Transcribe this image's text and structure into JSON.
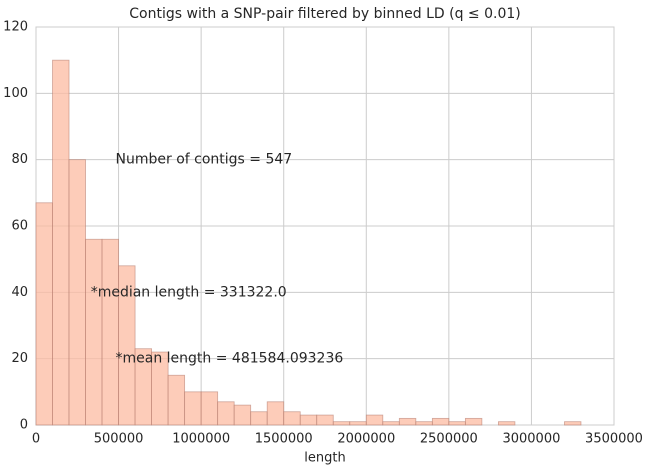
{
  "chart_data": {
    "type": "histogram",
    "title": "Contigs with a SNP-pair filtered by binned LD (q ≤ 0.01)",
    "x_label": "length",
    "bins": [
      0,
      100000,
      200000,
      300000,
      400000,
      500000,
      600000,
      700000,
      800000,
      900000,
      1000000,
      1100000,
      1200000,
      1300000,
      1400000,
      1500000,
      1600000,
      1700000,
      1800000,
      1900000,
      2000000,
      2100000,
      2200000,
      2300000,
      2400000,
      2500000,
      2600000,
      2700000,
      2800000,
      2900000,
      3000000,
      3100000,
      3200000,
      3300000
    ],
    "values": [
      67,
      110,
      80,
      56,
      56,
      48,
      23,
      22,
      15,
      10,
      10,
      7,
      6,
      4,
      7,
      4,
      3,
      3,
      1,
      1,
      3,
      1,
      2,
      1,
      2,
      1,
      2,
      0,
      1,
      0,
      0,
      0,
      1
    ],
    "color": "#fcbba1",
    "xlim": [
      0,
      3500000
    ],
    "ylim": [
      0,
      120
    ],
    "xticks": [
      0,
      500000,
      1000000,
      1500000,
      2000000,
      2500000,
      3000000,
      3500000
    ],
    "yticks": [
      0,
      20,
      40,
      60,
      80,
      100,
      120
    ],
    "grid": true,
    "annotations": [
      {
        "text": "Number of contigs = 547",
        "x": 481584,
        "y": 80
      },
      {
        "text": "*median length = 331322.0",
        "x": 331322,
        "y": 40
      },
      {
        "text": "*mean length = 481584.093236",
        "x": 481584,
        "y": 20
      }
    ]
  }
}
